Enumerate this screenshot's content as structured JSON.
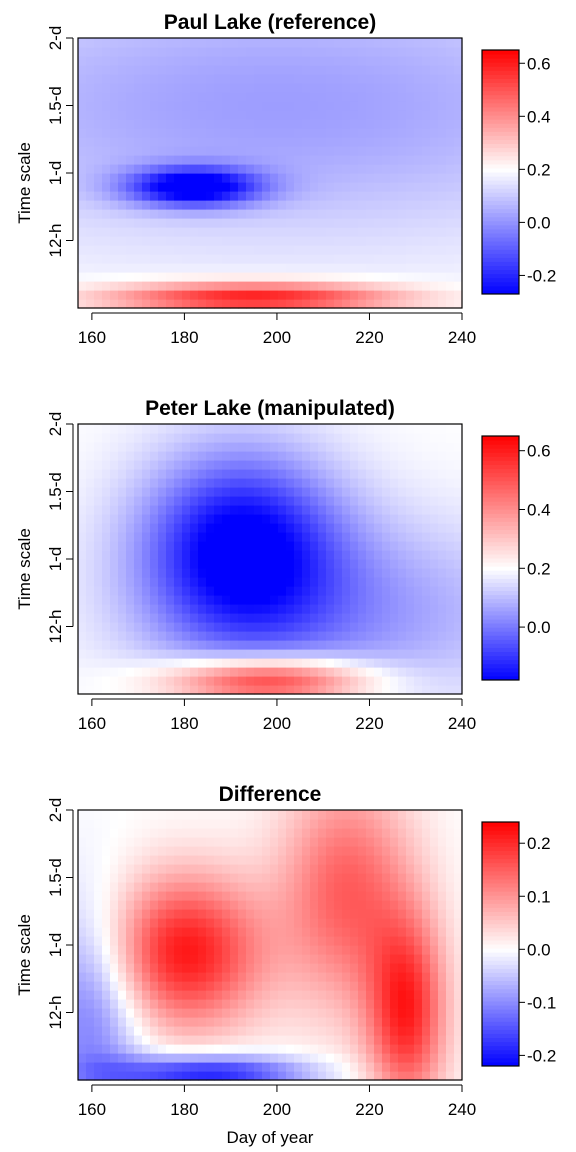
{
  "chart_data": [
    {
      "type": "heatmap",
      "title": "Paul Lake (reference)",
      "ylabel": "Time scale",
      "xlabel": "",
      "xlim": [
        157,
        240
      ],
      "x_ticks": [
        160,
        180,
        200,
        220,
        240
      ],
      "y_ticks": [
        "12-h",
        "1-d",
        "1.5-d",
        "2-d"
      ],
      "colorbar": {
        "min": -0.27,
        "max": 0.65,
        "ticks": [
          "-0.2",
          "0.0",
          "0.2",
          "0.4",
          "0.6"
        ]
      },
      "colormap": {
        "low": "#0000ff",
        "mid": "#ffffff",
        "high": "#ff0000",
        "mid_value": 0.2
      },
      "features": [
        {
          "x": 182,
          "y": 0.9,
          "sx": 10,
          "sy": 0.1,
          "value": -0.27
        },
        {
          "x": 195,
          "y": 0.08,
          "sx": 22,
          "sy": 0.08,
          "value": 0.62
        },
        {
          "x": 200,
          "y": 1.5,
          "sx": 60,
          "sy": 0.7,
          "value": 0.02
        }
      ]
    },
    {
      "type": "heatmap",
      "title": "Peter Lake (manipulated)",
      "ylabel": "Time scale",
      "xlabel": "",
      "xlim": [
        157,
        240
      ],
      "x_ticks": [
        160,
        180,
        200,
        220,
        240
      ],
      "y_ticks": [
        "12-h",
        "1-d",
        "1.5-d",
        "2-d"
      ],
      "colorbar": {
        "min": -0.18,
        "max": 0.65,
        "ticks": [
          "0.0",
          "0.2",
          "0.4",
          "0.6"
        ]
      },
      "colormap": {
        "low": "#0000ff",
        "mid": "#ffffff",
        "high": "#ff0000",
        "mid_value": 0.2
      },
      "features": [
        {
          "x": 192,
          "y": 1.1,
          "sx": 15,
          "sy": 0.5,
          "value": -0.18
        },
        {
          "x": 198,
          "y": 0.1,
          "sx": 15,
          "sy": 0.12,
          "value": 0.62
        },
        {
          "x": 215,
          "y": 0.6,
          "sx": 30,
          "sy": 0.5,
          "value": 0.05
        }
      ]
    },
    {
      "type": "heatmap",
      "title": "Difference",
      "ylabel": "Time scale",
      "xlabel": "Day of year",
      "xlim": [
        157,
        240
      ],
      "x_ticks": [
        160,
        180,
        200,
        220,
        240
      ],
      "y_ticks": [
        "12-h",
        "1-d",
        "1.5-d",
        "2-d"
      ],
      "colorbar": {
        "min": -0.22,
        "max": 0.24,
        "ticks": [
          "-0.2",
          "-0.1",
          "0.0",
          "0.1",
          "0.2"
        ]
      },
      "colormap": {
        "low": "#0000ff",
        "mid": "#ffffff",
        "high": "#ff0000",
        "mid_value": 0.0
      },
      "features": [
        {
          "x": 180,
          "y": 0.95,
          "sx": 12,
          "sy": 0.4,
          "value": 0.22
        },
        {
          "x": 185,
          "y": 0.05,
          "sx": 15,
          "sy": 0.1,
          "value": -0.2
        },
        {
          "x": 160,
          "y": 0.5,
          "sx": 8,
          "sy": 0.6,
          "value": -0.12
        },
        {
          "x": 215,
          "y": 1.4,
          "sx": 10,
          "sy": 0.6,
          "value": 0.15
        },
        {
          "x": 228,
          "y": 0.5,
          "sx": 6,
          "sy": 0.5,
          "value": 0.2
        }
      ]
    }
  ]
}
